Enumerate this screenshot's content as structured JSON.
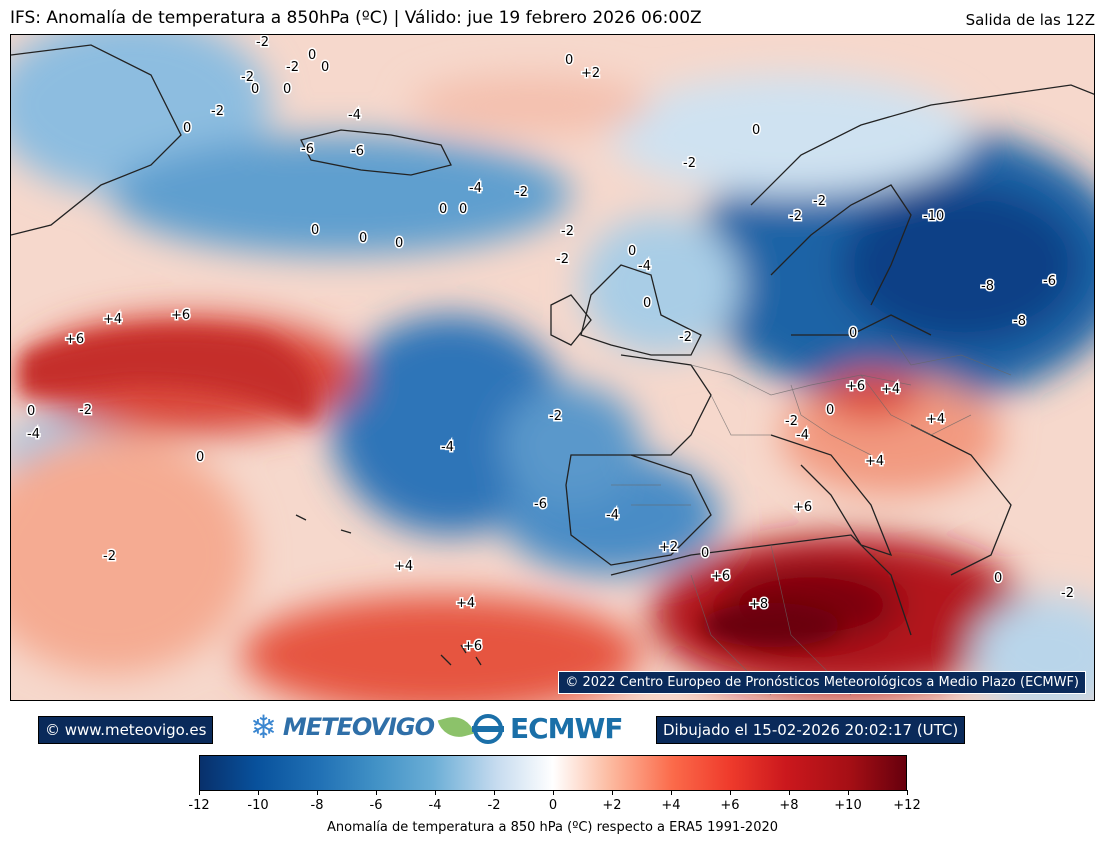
{
  "header": {
    "title": "IFS: Anomalía de temperatura a 850hPa  (ºC) | Válido: jue 19 febrero 2026 06:00Z",
    "run": "Salida de las 12Z"
  },
  "map": {
    "copyright": "© 2022 Centro Europeo de Pronósticos Meteorológicos a Medio Plazo (ECMWF)",
    "contour_labels": [
      "-2",
      "0",
      "-2",
      "0",
      "0",
      "-2",
      "0",
      "0",
      "-2",
      "-4",
      "-6",
      "-6",
      "0",
      "+2",
      "0",
      "-2",
      "-4",
      "-2",
      "0",
      "0",
      "0",
      "0",
      "0",
      "-2",
      "-2",
      "-2",
      "0",
      "-4",
      "-2",
      "0",
      "-2",
      "-10",
      "-8",
      "-8",
      "-6",
      "+4",
      "+6",
      "+6",
      "0",
      "-2",
      "-4",
      "0",
      "-2",
      "-4",
      "+6",
      "+4",
      "-2",
      "+4",
      "-4",
      "+4",
      "-6",
      "-4",
      "+6",
      "+2",
      "0",
      "+6",
      "+8",
      "-2",
      "+4",
      "+4",
      "+6",
      "0",
      "-2",
      "0",
      "0"
    ],
    "colors": {
      "cold_extreme": "#08306b",
      "neutral": "#ffffff",
      "warm_extreme": "#67000d",
      "coast": "#222222"
    }
  },
  "footer": {
    "site": "© www.meteovigo.es",
    "logo_meteovigo": "METEOVIGO",
    "logo_ecmwf": "ECMWF",
    "drawn": "Dibujado el 15-02-2026 20:02:17 (UTC)"
  },
  "colorbar": {
    "ticks": [
      "-12",
      "-10",
      "-8",
      "-6",
      "-4",
      "-2",
      "0",
      "+2",
      "+4",
      "+6",
      "+8",
      "+10",
      "+12"
    ],
    "label": "Anomalía de temperatura a 850 hPa (ºC) respecto a ERA5 1991-2020",
    "range": [
      -12,
      12
    ]
  }
}
